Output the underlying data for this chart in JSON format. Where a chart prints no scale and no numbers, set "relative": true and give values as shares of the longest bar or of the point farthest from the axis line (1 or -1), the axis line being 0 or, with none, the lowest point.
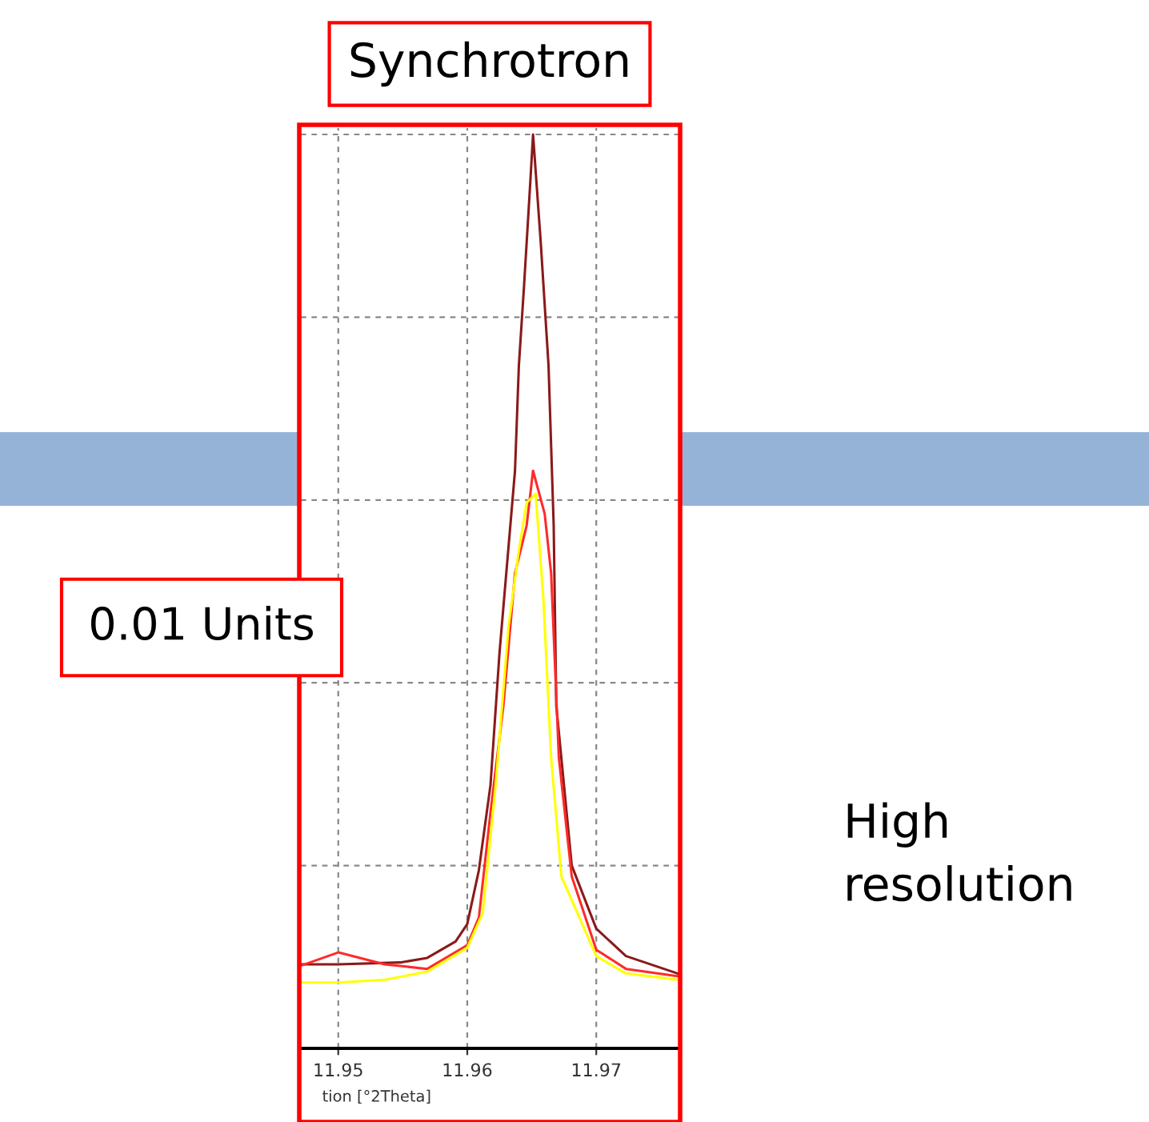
{
  "chart_data": {
    "type": "line",
    "title": "Synchrotron",
    "xlabel": "tion [°2Theta]",
    "relative": true,
    "xlim": [
      11.9471,
      11.9765
    ],
    "xticks": [
      11.95,
      11.96,
      11.97
    ],
    "grid": true,
    "legend": false,
    "tick_labels": "x",
    "annotations": [
      "0.01 Units",
      "High\nresolution"
    ],
    "series": [
      {
        "color": "#8b1a1a",
        "x": [
          11.9472,
          11.95,
          11.9548,
          11.9569,
          11.9591,
          11.96,
          11.9609,
          11.9618,
          11.9625,
          11.9637,
          11.964,
          11.9644,
          11.9649,
          11.9651,
          11.9657,
          11.9663,
          11.9667,
          11.9669,
          11.9681,
          11.97,
          11.9723,
          11.9763
        ],
        "values": [
          0.092,
          0.092,
          0.094,
          0.099,
          0.117,
          0.136,
          0.195,
          0.288,
          0.433,
          0.632,
          0.747,
          0.834,
          0.951,
          1.0,
          0.881,
          0.747,
          0.572,
          0.375,
          0.2,
          0.131,
          0.101,
          0.082
        ]
      },
      {
        "color": "#ff2a2a",
        "x": [
          11.9472,
          11.95,
          11.9536,
          11.9569,
          11.96,
          11.9609,
          11.9618,
          11.9628,
          11.9637,
          11.9646,
          11.9651,
          11.966,
          11.9665,
          11.9671,
          11.9681,
          11.97,
          11.9723,
          11.9763
        ],
        "values": [
          0.091,
          0.105,
          0.092,
          0.087,
          0.113,
          0.143,
          0.258,
          0.375,
          0.52,
          0.572,
          0.632,
          0.585,
          0.52,
          0.318,
          0.188,
          0.108,
          0.087,
          0.079
        ]
      },
      {
        "color": "#ffff00",
        "x": [
          11.9472,
          11.95,
          11.9536,
          11.9569,
          11.96,
          11.9612,
          11.9622,
          11.9632,
          11.964,
          11.9646,
          11.9653,
          11.9659,
          11.9665,
          11.9673,
          11.97,
          11.9723,
          11.9763
        ],
        "values": [
          0.072,
          0.072,
          0.075,
          0.084,
          0.11,
          0.148,
          0.288,
          0.462,
          0.545,
          0.597,
          0.607,
          0.492,
          0.318,
          0.188,
          0.101,
          0.082,
          0.075
        ]
      }
    ]
  }
}
